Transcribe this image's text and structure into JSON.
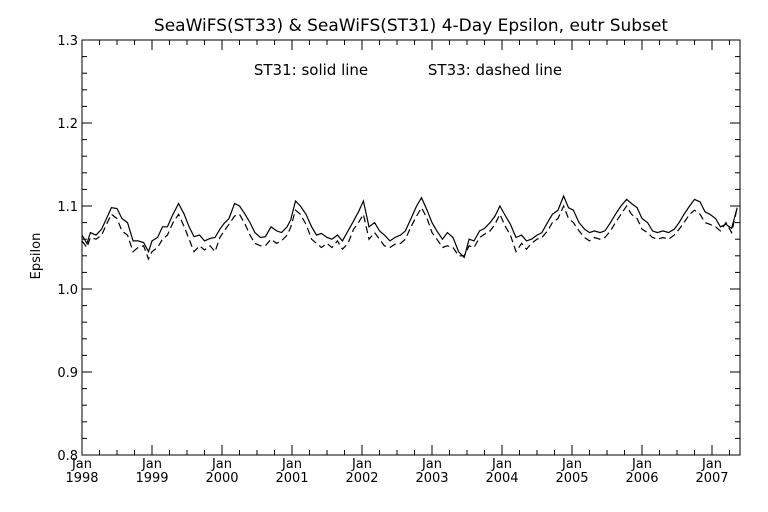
{
  "chart_data": {
    "type": "line",
    "title": "SeaWiFS(ST33) & SeaWiFS(ST31) 4-Day Epsilon, eutr Subset",
    "annotation_left": "ST31: solid line",
    "annotation_right": "ST33: dashed line",
    "xlabel": "",
    "ylabel": "Epsilon",
    "xlim": [
      1998.0,
      2007.4
    ],
    "ylim": [
      0.8,
      1.3
    ],
    "yticks": [
      "0.8",
      "0.9",
      "1.0",
      "1.1",
      "1.2",
      "1.3"
    ],
    "xticks": [
      {
        "month": "Jan",
        "year": "1998"
      },
      {
        "month": "Jan",
        "year": "1999"
      },
      {
        "month": "Jan",
        "year": "2000"
      },
      {
        "month": "Jan",
        "year": "2001"
      },
      {
        "month": "Jan",
        "year": "2002"
      },
      {
        "month": "Jan",
        "year": "2003"
      },
      {
        "month": "Jan",
        "year": "2004"
      },
      {
        "month": "Jan",
        "year": "2005"
      },
      {
        "month": "Jan",
        "year": "2006"
      },
      {
        "month": "Jan",
        "year": "2007"
      }
    ],
    "grid": false,
    "series": [
      {
        "name": "ST31",
        "style": "solid",
        "x": [
          1998.0,
          1998.07,
          1998.12,
          1998.2,
          1998.28,
          1998.35,
          1998.42,
          1998.5,
          1998.57,
          1998.65,
          1998.73,
          1998.8,
          1998.88,
          1998.95,
          1999.0,
          1999.08,
          1999.15,
          1999.22,
          1999.3,
          1999.38,
          1999.46,
          1999.53,
          1999.6,
          1999.68,
          1999.75,
          1999.83,
          1999.9,
          1999.97,
          2000.03,
          2000.1,
          2000.18,
          2000.25,
          2000.33,
          2000.4,
          2000.47,
          2000.55,
          2000.62,
          2000.7,
          2000.78,
          2000.85,
          2000.93,
          2000.98,
          2001.05,
          2001.12,
          2001.2,
          2001.28,
          2001.35,
          2001.42,
          2001.5,
          2001.57,
          2001.65,
          2001.72,
          2001.8,
          2001.88,
          2001.95,
          2002.02,
          2002.1,
          2002.18,
          2002.25,
          2002.32,
          2002.4,
          2002.47,
          2002.55,
          2002.62,
          2002.7,
          2002.78,
          2002.85,
          2002.93,
          2003.0,
          2003.07,
          2003.15,
          2003.22,
          2003.3,
          2003.38,
          2003.46,
          2003.53,
          2003.6,
          2003.68,
          2003.75,
          2003.83,
          2003.9,
          2003.97,
          2004.05,
          2004.12,
          2004.2,
          2004.28,
          2004.35,
          2004.42,
          2004.5,
          2004.57,
          2004.65,
          2004.72,
          2004.8,
          2004.88,
          2004.95,
          2005.02,
          2005.1,
          2005.18,
          2005.25,
          2005.32,
          2005.4,
          2005.47,
          2005.55,
          2005.62,
          2005.7,
          2005.78,
          2005.85,
          2005.93,
          2006.0,
          2006.08,
          2006.15,
          2006.22,
          2006.3,
          2006.38,
          2006.46,
          2006.53,
          2006.6,
          2006.68,
          2006.75,
          2006.83,
          2006.9,
          2006.97,
          2007.05,
          2007.12,
          2007.2,
          2007.28,
          2007.36
        ],
        "y": [
          1.065,
          1.055,
          1.068,
          1.065,
          1.072,
          1.085,
          1.098,
          1.097,
          1.085,
          1.08,
          1.058,
          1.058,
          1.056,
          1.045,
          1.058,
          1.062,
          1.075,
          1.075,
          1.09,
          1.103,
          1.09,
          1.075,
          1.063,
          1.065,
          1.058,
          1.061,
          1.062,
          1.072,
          1.079,
          1.085,
          1.103,
          1.1,
          1.09,
          1.08,
          1.068,
          1.062,
          1.063,
          1.075,
          1.07,
          1.068,
          1.075,
          1.083,
          1.106,
          1.1,
          1.09,
          1.075,
          1.065,
          1.067,
          1.062,
          1.06,
          1.065,
          1.058,
          1.07,
          1.082,
          1.093,
          1.106,
          1.075,
          1.08,
          1.07,
          1.065,
          1.058,
          1.062,
          1.065,
          1.07,
          1.085,
          1.1,
          1.11,
          1.095,
          1.08,
          1.07,
          1.06,
          1.068,
          1.062,
          1.045,
          1.038,
          1.06,
          1.058,
          1.07,
          1.073,
          1.08,
          1.088,
          1.1,
          1.088,
          1.078,
          1.062,
          1.065,
          1.058,
          1.06,
          1.065,
          1.068,
          1.08,
          1.09,
          1.095,
          1.112,
          1.098,
          1.095,
          1.08,
          1.072,
          1.068,
          1.07,
          1.068,
          1.07,
          1.08,
          1.09,
          1.1,
          1.108,
          1.103,
          1.098,
          1.085,
          1.08,
          1.07,
          1.068,
          1.07,
          1.068,
          1.072,
          1.08,
          1.09,
          1.1,
          1.108,
          1.105,
          1.093,
          1.09,
          1.085,
          1.075,
          1.078,
          1.073,
          1.098
        ]
      },
      {
        "name": "ST33",
        "style": "dashed",
        "x": [
          1998.0,
          1998.07,
          1998.12,
          1998.2,
          1998.28,
          1998.35,
          1998.42,
          1998.5,
          1998.57,
          1998.65,
          1998.73,
          1998.8,
          1998.88,
          1998.95,
          1999.0,
          1999.08,
          1999.15,
          1999.22,
          1999.3,
          1999.38,
          1999.46,
          1999.53,
          1999.6,
          1999.68,
          1999.75,
          1999.83,
          1999.9,
          1999.97,
          2000.03,
          2000.1,
          2000.18,
          2000.25,
          2000.33,
          2000.4,
          2000.47,
          2000.55,
          2000.62,
          2000.7,
          2000.78,
          2000.85,
          2000.93,
          2000.98,
          2001.05,
          2001.12,
          2001.2,
          2001.28,
          2001.35,
          2001.42,
          2001.5,
          2001.57,
          2001.65,
          2001.72,
          2001.8,
          2001.88,
          2001.95,
          2002.02,
          2002.1,
          2002.18,
          2002.25,
          2002.32,
          2002.4,
          2002.47,
          2002.55,
          2002.62,
          2002.7,
          2002.78,
          2002.85,
          2002.93,
          2003.0,
          2003.07,
          2003.15,
          2003.22,
          2003.3,
          2003.38,
          2003.46,
          2003.53,
          2003.6,
          2003.68,
          2003.75,
          2003.83,
          2003.9,
          2003.97,
          2004.05,
          2004.12,
          2004.2,
          2004.28,
          2004.35,
          2004.42,
          2004.5,
          2004.57,
          2004.65,
          2004.72,
          2004.8,
          2004.88,
          2004.95,
          2005.02,
          2005.1,
          2005.18,
          2005.25,
          2005.32,
          2005.4,
          2005.47,
          2005.55,
          2005.62,
          2005.7,
          2005.78,
          2005.85,
          2005.93,
          2006.0,
          2006.08,
          2006.15,
          2006.22,
          2006.3,
          2006.38,
          2006.46,
          2006.53,
          2006.6,
          2006.68,
          2006.75,
          2006.83,
          2006.9,
          2006.97,
          2007.05,
          2007.12,
          2007.2,
          2007.28,
          2007.36
        ],
        "y": [
          1.058,
          1.05,
          1.062,
          1.06,
          1.065,
          1.078,
          1.09,
          1.085,
          1.07,
          1.065,
          1.045,
          1.05,
          1.052,
          1.036,
          1.045,
          1.05,
          1.06,
          1.065,
          1.08,
          1.09,
          1.075,
          1.06,
          1.045,
          1.052,
          1.047,
          1.052,
          1.045,
          1.062,
          1.07,
          1.078,
          1.088,
          1.09,
          1.078,
          1.065,
          1.055,
          1.052,
          1.052,
          1.06,
          1.055,
          1.058,
          1.065,
          1.074,
          1.095,
          1.09,
          1.078,
          1.06,
          1.055,
          1.05,
          1.055,
          1.05,
          1.058,
          1.048,
          1.055,
          1.072,
          1.08,
          1.09,
          1.06,
          1.068,
          1.06,
          1.052,
          1.05,
          1.054,
          1.055,
          1.06,
          1.075,
          1.088,
          1.098,
          1.085,
          1.068,
          1.06,
          1.05,
          1.052,
          1.05,
          1.04,
          1.04,
          1.052,
          1.05,
          1.062,
          1.066,
          1.07,
          1.078,
          1.09,
          1.075,
          1.065,
          1.045,
          1.055,
          1.048,
          1.055,
          1.06,
          1.062,
          1.07,
          1.08,
          1.085,
          1.1,
          1.085,
          1.08,
          1.07,
          1.062,
          1.058,
          1.062,
          1.06,
          1.062,
          1.07,
          1.08,
          1.09,
          1.1,
          1.09,
          1.085,
          1.072,
          1.068,
          1.062,
          1.06,
          1.062,
          1.06,
          1.065,
          1.072,
          1.08,
          1.09,
          1.095,
          1.09,
          1.08,
          1.078,
          1.075,
          1.07,
          1.08,
          1.068,
          1.098
        ]
      }
    ]
  }
}
